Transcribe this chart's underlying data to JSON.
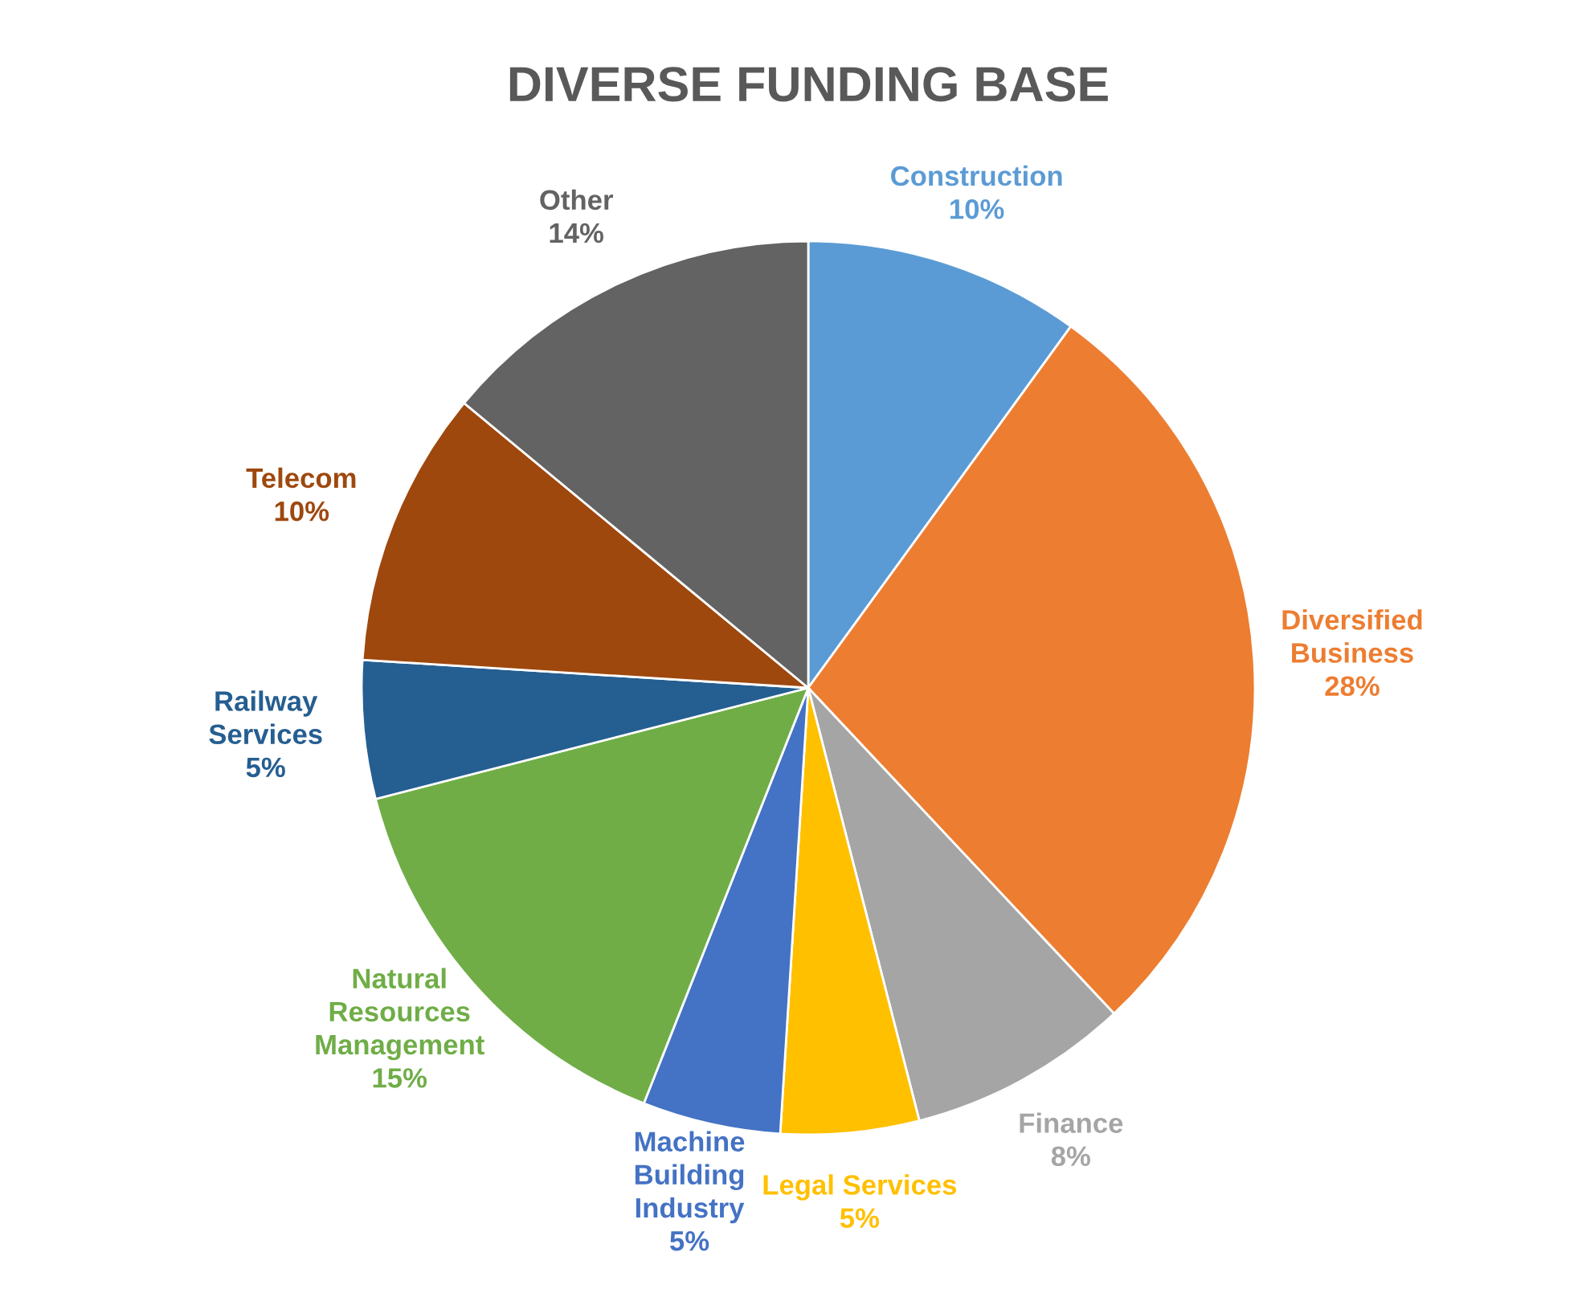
{
  "chart_data": {
    "type": "pie",
    "title": "DIVERSE FUNDING BASE",
    "categories": [
      "Construction",
      "Diversified\nBusiness",
      "Finance",
      "Legal Services",
      "Machine\nBuilding\nIndustry",
      "Natural\nResources\nManagement",
      "Railway\nServices",
      "Telecom",
      "Other"
    ],
    "values": [
      10,
      28,
      8,
      5,
      5,
      15,
      5,
      10,
      14
    ],
    "value_labels": [
      "10%",
      "28%",
      "8%",
      "5%",
      "5%",
      "15%",
      "5%",
      "10%",
      "14%"
    ],
    "colors": [
      "#5b9bd5",
      "#ed7d31",
      "#a5a5a5",
      "#ffc000",
      "#4472c4",
      "#70ad47",
      "#255e91",
      "#9e480e",
      "#636363"
    ],
    "legend": false
  }
}
